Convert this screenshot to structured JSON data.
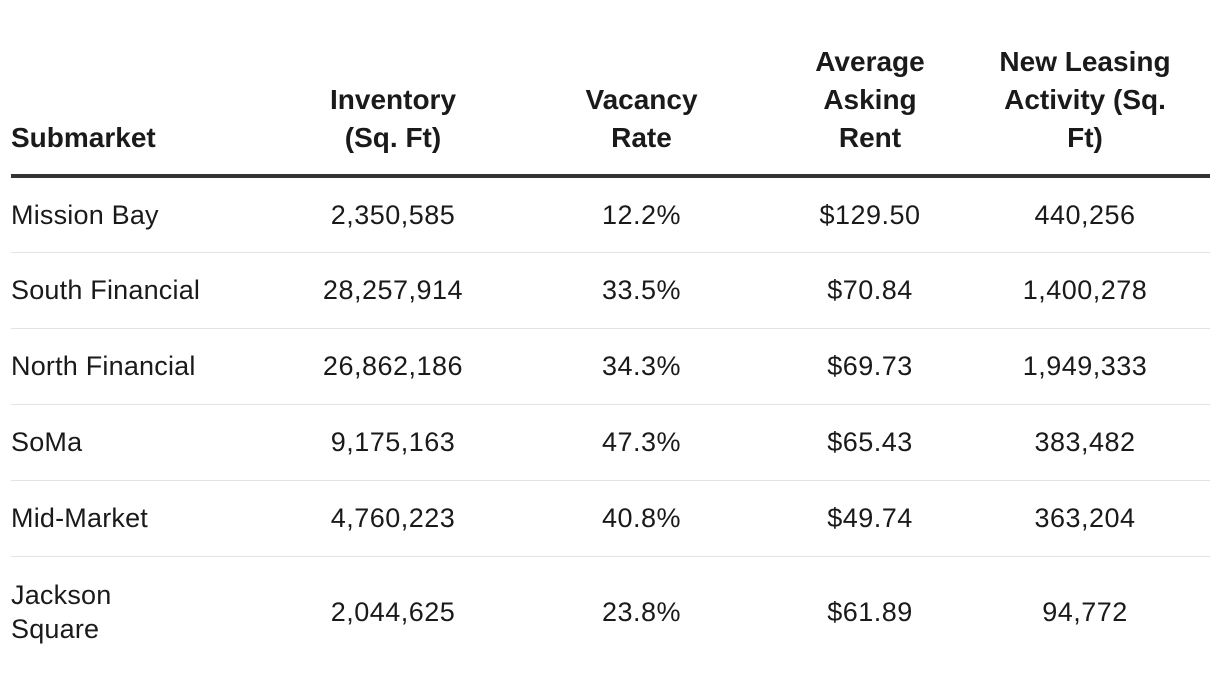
{
  "chart_data": {
    "type": "table",
    "columns": [
      [
        "Submarket"
      ],
      [
        "Inventory",
        "(Sq. Ft)"
      ],
      [
        "Vacancy",
        "Rate"
      ],
      [
        "Average",
        "Asking",
        "Rent"
      ],
      [
        "New Leasing",
        "Activity (Sq.",
        "Ft)"
      ]
    ],
    "rows": [
      {
        "submarket": [
          "Mission Bay"
        ],
        "inventory": "2,350,585",
        "vacancy": "12.2%",
        "rent": "$129.50",
        "leasing": "440,256"
      },
      {
        "submarket": [
          "South Financial"
        ],
        "inventory": "28,257,914",
        "vacancy": "33.5%",
        "rent": "$70.84",
        "leasing": "1,400,278"
      },
      {
        "submarket": [
          "North Financial"
        ],
        "inventory": "26,862,186",
        "vacancy": "34.3%",
        "rent": "$69.73",
        "leasing": "1,949,333"
      },
      {
        "submarket": [
          "SoMa"
        ],
        "inventory": "9,175,163",
        "vacancy": "47.3%",
        "rent": "$65.43",
        "leasing": "383,482"
      },
      {
        "submarket": [
          "Mid-Market"
        ],
        "inventory": "4,760,223",
        "vacancy": "40.8%",
        "rent": "$49.74",
        "leasing": "363,204"
      },
      {
        "submarket": [
          "Jackson",
          "Square"
        ],
        "inventory": "2,044,625",
        "vacancy": "23.8%",
        "rent": "$61.89",
        "leasing": "94,772"
      }
    ],
    "header_rule_color": "#333333",
    "row_rule_color": "#e2e2e2"
  }
}
